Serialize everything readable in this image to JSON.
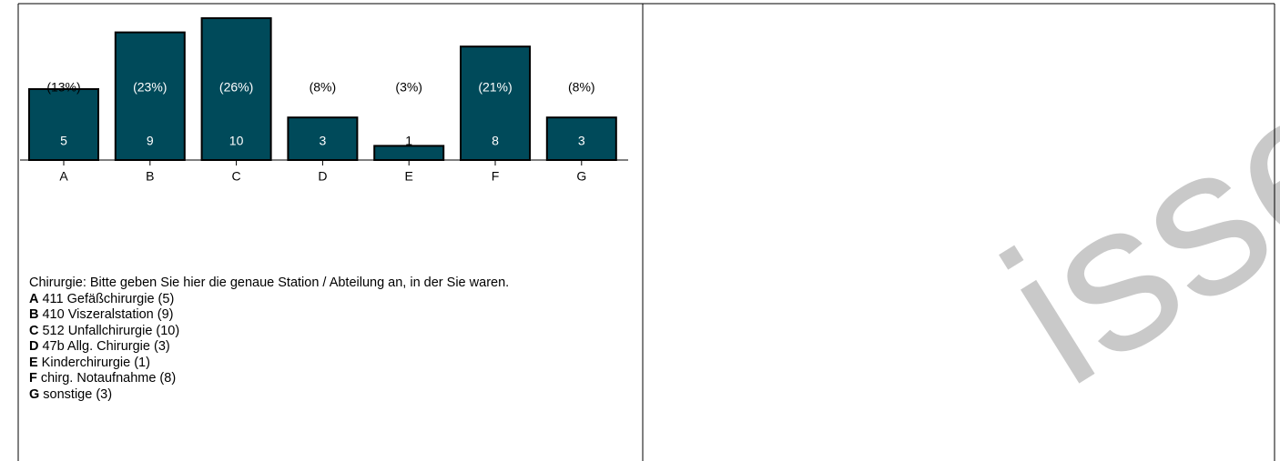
{
  "chart_data": {
    "type": "bar",
    "categories": [
      "A",
      "B",
      "C",
      "D",
      "E",
      "F",
      "G"
    ],
    "values": [
      5,
      9,
      10,
      3,
      1,
      8,
      3
    ],
    "value_labels": [
      "(13%)",
      "(23%)",
      "(26%)",
      "(8%)",
      "(3%)",
      "(21%)",
      "(8%)"
    ],
    "color": "#004a5a"
  },
  "question": {
    "title": "Chirurgie: Bitte geben Sie hier die genaue Station / Abteilung an, in der Sie waren.",
    "legend": [
      {
        "letter": "A",
        "label": "411 Gefäßchirurgie (5)"
      },
      {
        "letter": "B",
        "label": "410 Viszeralstation (9)"
      },
      {
        "letter": "C",
        "label": "512 Unfallchirurgie (10)"
      },
      {
        "letter": "D",
        "label": "47b Allg. Chirurgie (3)"
      },
      {
        "letter": "E",
        "label": "Kinderchirurgie (1)"
      },
      {
        "letter": "F",
        "label": "chirg. Notaufnahme (8)"
      },
      {
        "letter": "G",
        "label": "sonstige (3)"
      }
    ]
  },
  "watermark": "isse"
}
